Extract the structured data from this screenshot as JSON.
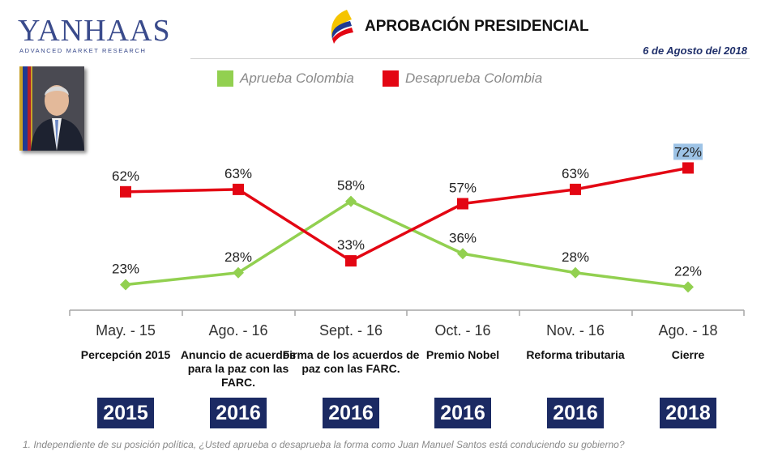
{
  "header": {
    "logo_text": "YANHAAS",
    "logo_subtitle": "ADVANCED MARKET RESEARCH",
    "title": "APROBACIÓN PRESIDENCIAL",
    "date": "6 de Agosto del 2018"
  },
  "chart_data": {
    "type": "line",
    "categories": [
      "May. - 15",
      "Ago. - 16",
      "Sept. - 16",
      "Oct. - 16",
      "Nov. - 16",
      "Ago. - 18"
    ],
    "series": [
      {
        "name": "Aprueba Colombia",
        "color": "#92d050",
        "values": [
          23,
          28,
          58,
          36,
          28,
          22
        ],
        "labels": [
          "23%",
          "28%",
          "58%",
          "36%",
          "28%",
          "22%"
        ]
      },
      {
        "name": "Desaprueba Colombia",
        "color": "#e30613",
        "values": [
          62,
          63,
          33,
          57,
          63,
          72
        ],
        "labels": [
          "62%",
          "63%",
          "33%",
          "57%",
          "63%",
          "72%"
        ]
      }
    ],
    "events": [
      "Percepción 2015",
      "Anuncio de acuerdos para la paz con las FARC.",
      "Firma de los acuerdos de paz con las FARC.",
      "Premio Nobel",
      "Reforma tributaria",
      "Cierre"
    ],
    "years": [
      "2015",
      "2016",
      "2016",
      "2016",
      "2016",
      "2018"
    ],
    "ylim": [
      15,
      75
    ],
    "grid": false,
    "legend_position": "top"
  },
  "footnote": "1. Independiente de su posición política, ¿Usted aprueba o desaprueba la forma como Juan Manuel Santos está conduciendo su gobierno?",
  "icons": {
    "logo_mark": "colombia-flag-swoosh-icon",
    "photo": "president-portrait"
  }
}
